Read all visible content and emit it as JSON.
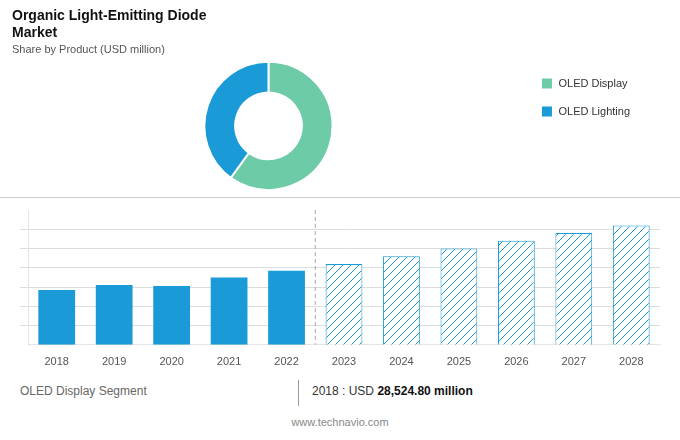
{
  "chart_data": [
    {
      "type": "doughnut",
      "title": [
        "Organic Light-Emitting Diode",
        "Market"
      ],
      "subtitle": "Share by Product (USD million)",
      "categories": [
        "OLED Display",
        "OLED Lighting"
      ],
      "values": [
        60,
        40
      ],
      "colors": [
        "#6dcba8",
        "#1a9ad6"
      ],
      "legend": "right"
    },
    {
      "type": "bar",
      "categories": [
        "2018",
        "2019",
        "2020",
        "2021",
        "2022",
        "2023",
        "2024",
        "2025",
        "2026",
        "2027",
        "2028"
      ],
      "series": [
        {
          "color": "#1a9ad6",
          "values": [
            28500,
            31000,
            30500,
            35000,
            38500,
            null,
            null,
            null,
            null,
            null,
            null
          ]
        },
        {
          "color": "#1a9ad6",
          "line_style": "hatched",
          "values": [
            null,
            null,
            null,
            null,
            null,
            42000,
            46000,
            50000,
            54000,
            58000,
            62000
          ]
        }
      ],
      "ylim": [
        0,
        70000
      ],
      "yticks": [
        10000,
        20000,
        30000,
        40000,
        50000,
        60000
      ],
      "grid": true,
      "tick_labels": "x",
      "annotations": [
        "OLED Display Segment",
        "2018 : USD ",
        "28,524.80 million",
        "www.technavio.com"
      ]
    }
  ]
}
